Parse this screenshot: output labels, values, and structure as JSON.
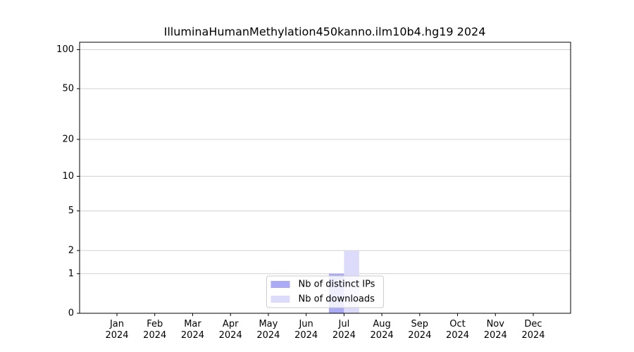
{
  "chart_data": {
    "type": "bar",
    "title": "IlluminaHumanMethylation450kanno.ilm10b4.hg19 2024",
    "categories": [
      "Jan\n2024",
      "Feb\n2024",
      "Mar\n2024",
      "Apr\n2024",
      "May\n2024",
      "Jun\n2024",
      "Jul\n2024",
      "Aug\n2024",
      "Sep\n2024",
      "Oct\n2024",
      "Nov\n2024",
      "Dec\n2024"
    ],
    "series": [
      {
        "name": "Nb of distinct IPs",
        "color": "#aaaaf5",
        "values": [
          0,
          0,
          0,
          0,
          0,
          0,
          1,
          0,
          0,
          0,
          0,
          0
        ]
      },
      {
        "name": "Nb of downloads",
        "color": "#dcdcfa",
        "values": [
          0,
          0,
          0,
          0,
          0,
          0,
          2,
          0,
          0,
          0,
          0,
          0
        ]
      }
    ],
    "yscale": "log1p",
    "ylim": [
      0,
      114
    ],
    "yticks": [
      0,
      1,
      2,
      5,
      10,
      20,
      50,
      100
    ],
    "grid": true,
    "legend": "lower center"
  }
}
